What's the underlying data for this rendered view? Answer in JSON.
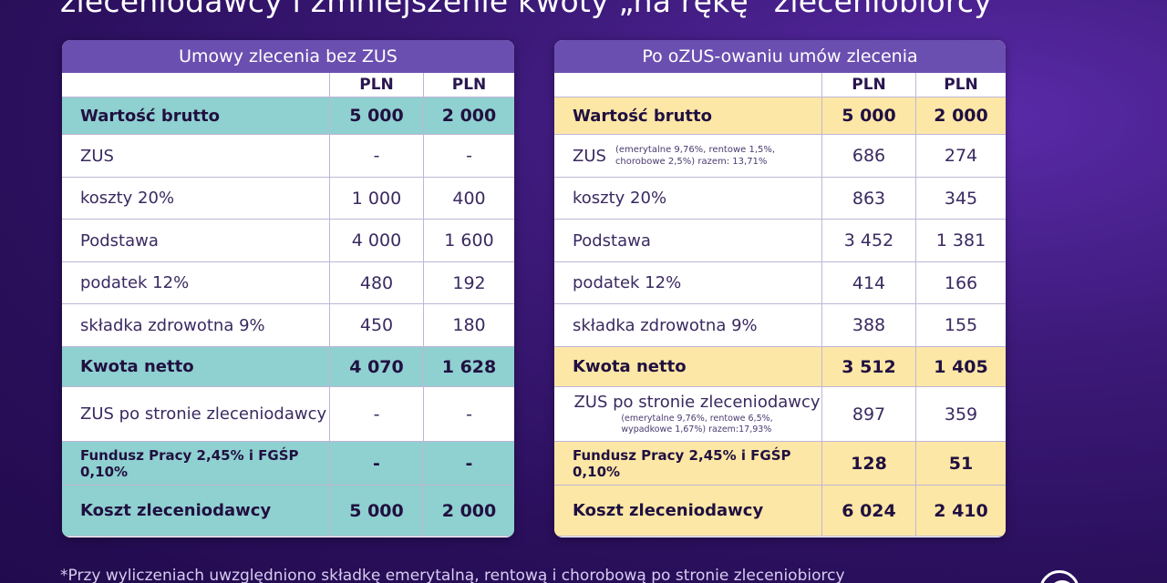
{
  "page_title": "zleceniodawcy i zmniejszenie kwoty „na rękę” zleceniobiorcy",
  "left_table": {
    "title": "Umowy zlecenia bez ZUS",
    "col_headers": [
      "PLN",
      "PLN"
    ],
    "rows": [
      {
        "label": "Wartość brutto",
        "v1": "5 000",
        "v2": "2 000"
      },
      {
        "label": "ZUS",
        "v1": "-",
        "v2": "-"
      },
      {
        "label": "koszty 20%",
        "v1": "1 000",
        "v2": "400"
      },
      {
        "label": "Podstawa",
        "v1": "4 000",
        "v2": "1 600"
      },
      {
        "label": "podatek 12%",
        "v1": "480",
        "v2": "192"
      },
      {
        "label": "składka zdrowotna 9%",
        "v1": "450",
        "v2": "180"
      },
      {
        "label": "Kwota netto",
        "v1": "4 070",
        "v2": "1 628"
      },
      {
        "label": "ZUS po stronie zleceniodawcy",
        "v1": "-",
        "v2": "-"
      },
      {
        "label": "Fundusz Pracy 2,45% i FGŚP 0,10%",
        "v1": "-",
        "v2": "-"
      },
      {
        "label": "Koszt zleceniodawcy",
        "v1": "5 000",
        "v2": "2 000"
      }
    ]
  },
  "right_table": {
    "title": "Po oZUS-owaniu umów zlecenia",
    "col_headers": [
      "PLN",
      "PLN"
    ],
    "zus_note_line1": "(emerytalne 9,76%, rentowe 1,5%,",
    "zus_note_line2": "chorobowe 2,5%) razem: 13,71%",
    "employer_note_line1": "(emerytalne 9,76%, rentowe 6,5%,",
    "employer_note_line2": "wypadkowe 1,67%) razem:17,93%",
    "rows": [
      {
        "label": "Wartość brutto",
        "v1": "5 000",
        "v2": "2 000"
      },
      {
        "label": "ZUS",
        "v1": "686",
        "v2": "274"
      },
      {
        "label": "koszty 20%",
        "v1": "863",
        "v2": "345"
      },
      {
        "label": "Podstawa",
        "v1": "3 452",
        "v2": "1 381"
      },
      {
        "label": "podatek 12%",
        "v1": "414",
        "v2": "166"
      },
      {
        "label": "składka zdrowotna 9%",
        "v1": "388",
        "v2": "155"
      },
      {
        "label": "Kwota netto",
        "v1": "3 512",
        "v2": "1 405"
      },
      {
        "label": "ZUS po stronie zleceniodawcy",
        "v1": "897",
        "v2": "359"
      },
      {
        "label": "Fundusz Pracy 2,45% i FGŚP 0,10%",
        "v1": "128",
        "v2": "51"
      },
      {
        "label": "Koszt zleceniodawcy",
        "v1": "6 024",
        "v2": "2 410"
      }
    ]
  },
  "footnote": "*Przy wyliczeniach uwzględniono składkę emerytalną, rentową i chorobową po stronie zleceniobiorcy",
  "colors": {
    "left_highlight": "#8fd0d0",
    "right_highlight": "#fde7a6",
    "header": "#6b4fb0"
  },
  "icons": {
    "brand_logo": "circle-logo-icon"
  }
}
